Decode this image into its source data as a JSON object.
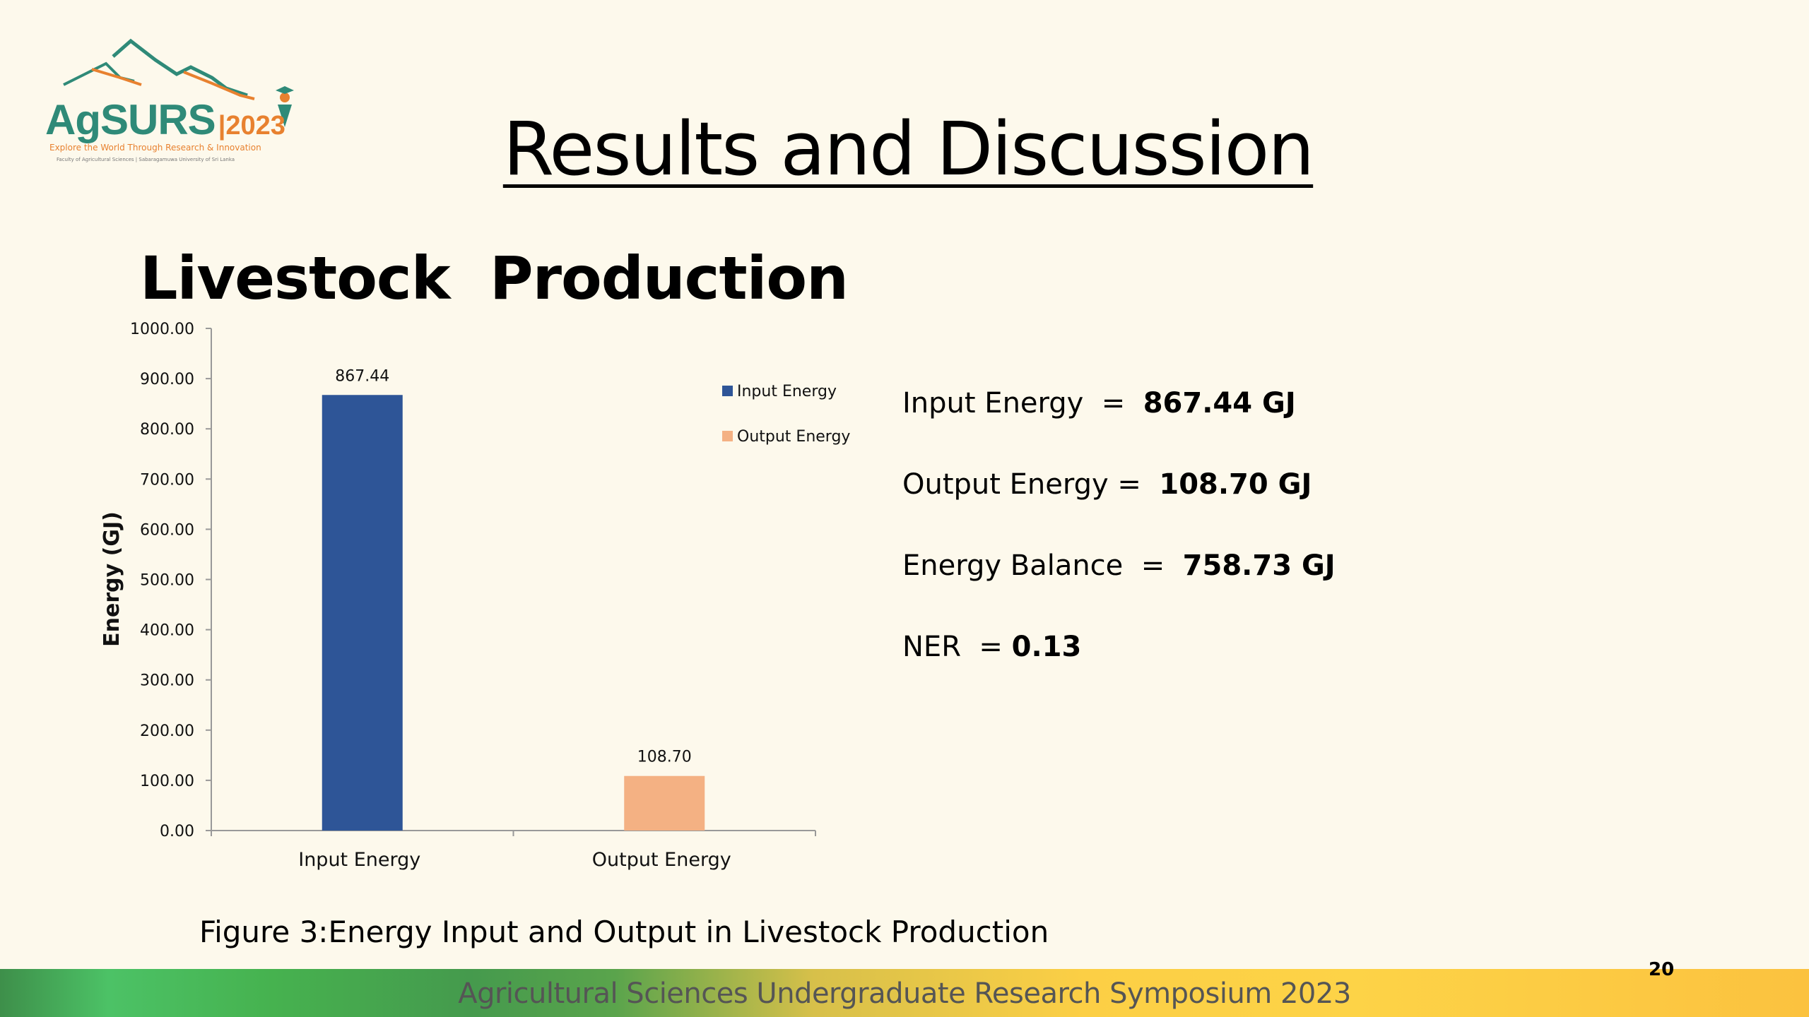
{
  "logo": {
    "name": "AgSURS",
    "year": "|2023",
    "tagline": "Explore the World Through Research & Innovation",
    "affiliation": "Faculty of Agricultural Sciences | Sabaragamuwa University of Sri Lanka",
    "colors": {
      "teal": "#2f8a78",
      "orange": "#e8812f"
    }
  },
  "title": "Results and Discussion",
  "subtitle": "Livestock  Production",
  "stats": [
    {
      "label": "Input Energy  =  ",
      "value": "867.44 GJ"
    },
    {
      "label": "Output Energy =  ",
      "value": "108.70 GJ"
    },
    {
      "label": "Energy Balance  =  ",
      "value": "758.73 GJ"
    },
    {
      "label": "NER  = ",
      "value": "0.13"
    }
  ],
  "caption": "Figure 3:Energy Input and Output in Livestock Production",
  "footer": "Agricultural Sciences Undergraduate Research Symposium 2023",
  "page_number": "20",
  "chart_data": {
    "type": "bar",
    "categories": [
      "Input Energy",
      "Output Energy"
    ],
    "values": [
      867.44,
      108.7
    ],
    "data_labels": [
      "867.44",
      "108.70"
    ],
    "colors": [
      "#2e5597",
      "#f4b183"
    ],
    "ylabel": "Energy (GJ)",
    "ylim": [
      0,
      1000
    ],
    "yticks": [
      "0.00",
      "100.00",
      "200.00",
      "300.00",
      "400.00",
      "500.00",
      "600.00",
      "700.00",
      "800.00",
      "900.00",
      "1000.00"
    ],
    "grid": false,
    "legend": {
      "position": "right",
      "entries": [
        "Input Energy",
        "Output Energy"
      ]
    }
  }
}
